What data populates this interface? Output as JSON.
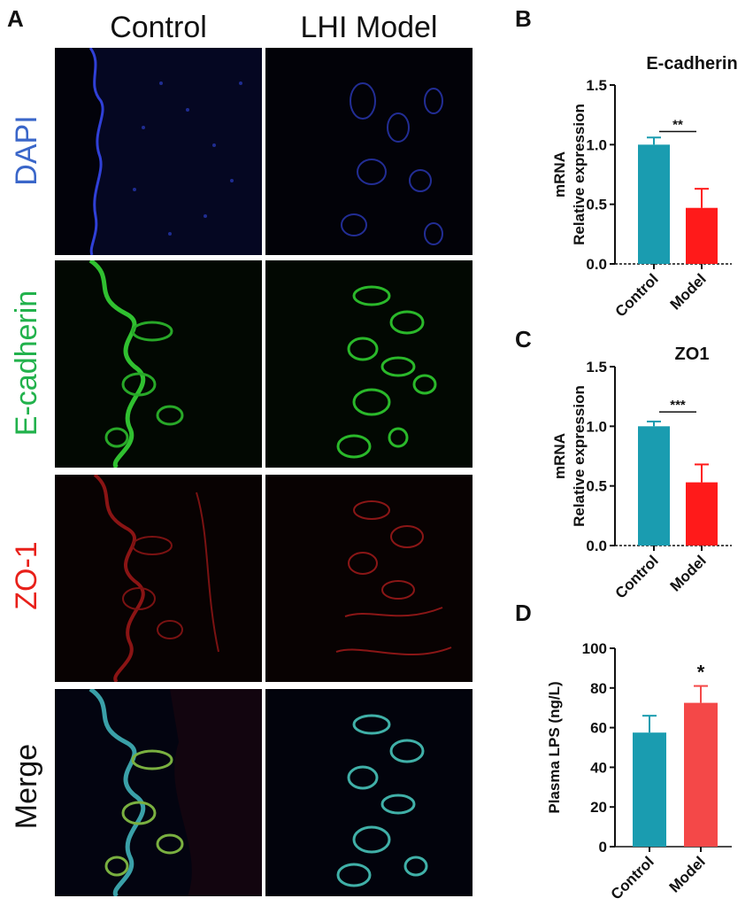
{
  "panel_labels": {
    "a": "A",
    "b": "B",
    "c": "C",
    "d": "D"
  },
  "panel_a": {
    "columns": [
      "Control",
      "LHI Model"
    ],
    "rows": [
      {
        "label": "DAPI",
        "color": "#3a66c9"
      },
      {
        "label": "E-cadherin",
        "color": "#22b24c"
      },
      {
        "label": "ZO-1",
        "color": "#e8201a"
      },
      {
        "label": "Merge",
        "color": "#111111"
      }
    ]
  },
  "chart_data": [
    {
      "type": "bar",
      "panel": "B",
      "title": "E-cadherin",
      "ylabel_line1": "mRNA",
      "ylabel_line2": "Relative expression",
      "categories": [
        "Control",
        "Model"
      ],
      "values": [
        1.0,
        0.47
      ],
      "errors": [
        0.06,
        0.16
      ],
      "colors": [
        "#1a9cb0",
        "#ff1a1a"
      ],
      "ylim": [
        0,
        1.5
      ],
      "yticks": [
        "0.0",
        "0.5",
        "1.0",
        "1.5"
      ],
      "significance": "**"
    },
    {
      "type": "bar",
      "panel": "C",
      "title": "ZO1",
      "ylabel_line1": "mRNA",
      "ylabel_line2": "Relative expression",
      "categories": [
        "Control",
        "Model"
      ],
      "values": [
        1.0,
        0.53
      ],
      "errors": [
        0.04,
        0.15
      ],
      "colors": [
        "#1a9cb0",
        "#ff1a1a"
      ],
      "ylim": [
        0,
        1.5
      ],
      "yticks": [
        "0.0",
        "0.5",
        "1.0",
        "1.5"
      ],
      "significance": "***"
    },
    {
      "type": "bar",
      "panel": "D",
      "title": "",
      "ylabel_line1": "",
      "ylabel_line2": "Plasma LPS (ng/L)",
      "categories": [
        "Control",
        "Model"
      ],
      "values": [
        57.5,
        72.5
      ],
      "errors": [
        8.5,
        8.5
      ],
      "colors": [
        "#1a9cb0",
        "#f44848"
      ],
      "ylim": [
        0,
        100
      ],
      "yticks": [
        "0",
        "20",
        "40",
        "60",
        "80",
        "100"
      ],
      "significance": "*"
    }
  ]
}
